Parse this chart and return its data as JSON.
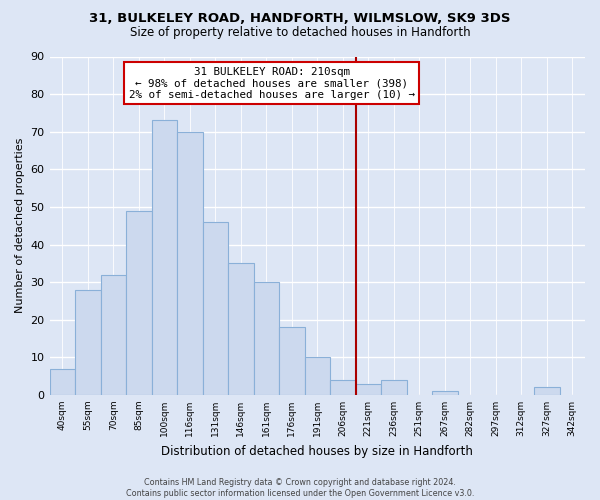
{
  "title": "31, BULKELEY ROAD, HANDFORTH, WILMSLOW, SK9 3DS",
  "subtitle": "Size of property relative to detached houses in Handforth",
  "xlabel": "Distribution of detached houses by size in Handforth",
  "ylabel": "Number of detached properties",
  "bar_labels": [
    "40sqm",
    "55sqm",
    "70sqm",
    "85sqm",
    "100sqm",
    "116sqm",
    "131sqm",
    "146sqm",
    "161sqm",
    "176sqm",
    "191sqm",
    "206sqm",
    "221sqm",
    "236sqm",
    "251sqm",
    "267sqm",
    "282sqm",
    "297sqm",
    "312sqm",
    "327sqm",
    "342sqm"
  ],
  "bar_values": [
    7,
    28,
    32,
    49,
    73,
    70,
    46,
    35,
    30,
    18,
    10,
    4,
    3,
    4,
    0,
    1,
    0,
    0,
    0,
    2,
    0
  ],
  "bar_color": "#ccd9ee",
  "bar_edge_color": "#8ab0d8",
  "vline_x": 11.5,
  "vline_color": "#aa0000",
  "annotation_title": "31 BULKELEY ROAD: 210sqm",
  "annotation_line1": "← 98% of detached houses are smaller (398)",
  "annotation_line2": "2% of semi-detached houses are larger (10) →",
  "ylim": [
    0,
    90
  ],
  "yticks": [
    0,
    10,
    20,
    30,
    40,
    50,
    60,
    70,
    80,
    90
  ],
  "bg_color": "#dde6f5",
  "plot_bg_color": "#dde6f5",
  "grid_color": "#ffffff",
  "footer_line1": "Contains HM Land Registry data © Crown copyright and database right 2024.",
  "footer_line2": "Contains public sector information licensed under the Open Government Licence v3.0."
}
